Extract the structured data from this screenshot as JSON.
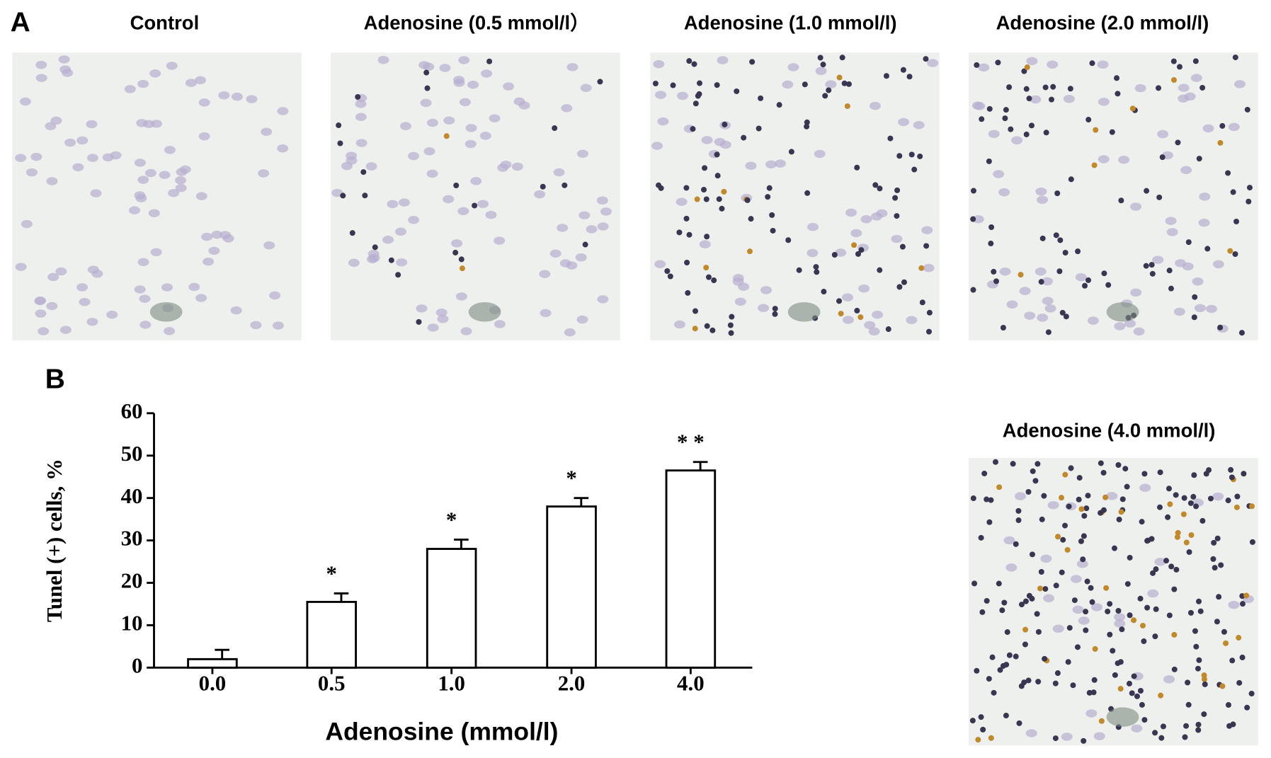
{
  "panel_a": {
    "label": "A",
    "images": [
      {
        "caption": "Control"
      },
      {
        "caption": "Adenosine (0.5 mmol/l）"
      },
      {
        "caption": "Adenosine (1.0 mmol/l)"
      },
      {
        "caption": "Adenosine (2.0 mmol/l)"
      },
      {
        "caption": "Adenosine (4.0 mmol/l)"
      }
    ]
  },
  "panel_b": {
    "label": "B"
  },
  "chart_data": {
    "type": "bar",
    "x_label": "Adenosine (mmol/l)",
    "y_label": "Tunel (+) cells, %",
    "categories": [
      "0.0",
      "0.5",
      "1.0",
      "2.0",
      "4.0"
    ],
    "values": [
      2,
      15.5,
      28,
      38,
      46.5
    ],
    "errors": [
      2.2,
      2,
      2.2,
      2,
      2
    ],
    "significance": [
      null,
      "*",
      "*",
      "*",
      "* *"
    ],
    "color": "#ffffff",
    "ylim": [
      0,
      60
    ],
    "yticks": [
      0,
      10,
      20,
      30,
      40,
      50,
      60
    ]
  }
}
